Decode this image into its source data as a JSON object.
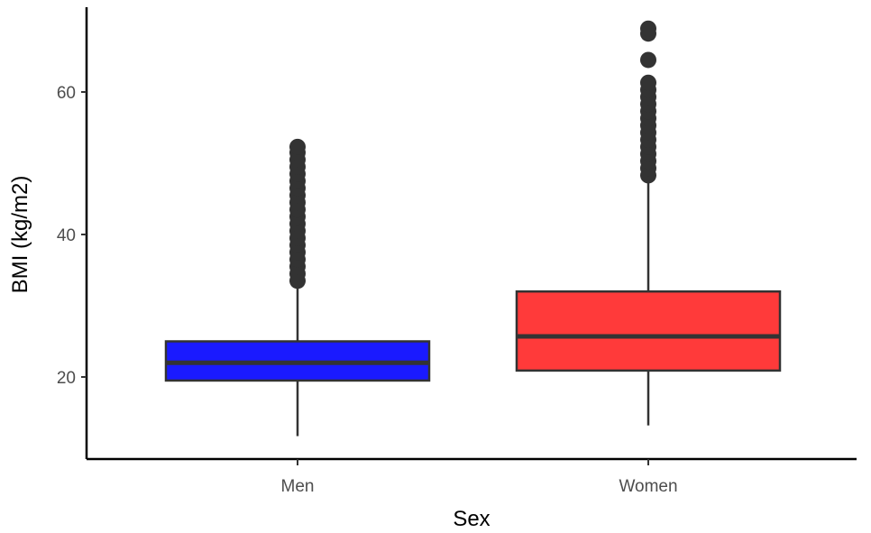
{
  "chart_data": {
    "type": "box",
    "xlabel": "Sex",
    "ylabel": "BMI (kg/m2)",
    "ylim": [
      9,
      71
    ],
    "yticks": [
      20,
      40,
      60
    ],
    "grid": false,
    "legend": "none",
    "categories": [
      "Men",
      "Women"
    ],
    "boxes": [
      {
        "category": "Men",
        "color": "#1a1aff",
        "whisker_low": 11.7,
        "q1": 19.5,
        "median": 22.0,
        "q3": 25.0,
        "whisker_high": 33.0,
        "outliers": [
          33.5,
          34.5,
          35.5,
          36.5,
          37.5,
          38.5,
          39.5,
          40.5,
          41.5,
          42.5,
          43.5,
          44.5,
          45.5,
          46.5,
          47.5,
          48.5,
          49.5,
          50.5,
          51.5,
          52.3
        ]
      },
      {
        "category": "Women",
        "color": "#ff3a3a",
        "whisker_low": 13.2,
        "q1": 20.9,
        "median": 25.7,
        "q3": 32.0,
        "whisker_high": 47.8,
        "outliers": [
          48.3,
          49.3,
          50.3,
          51.3,
          52.3,
          53.3,
          54.3,
          55.3,
          56.3,
          57.3,
          58.3,
          59.3,
          60.3,
          61.3,
          64.5,
          68.2,
          68.9
        ]
      }
    ]
  }
}
